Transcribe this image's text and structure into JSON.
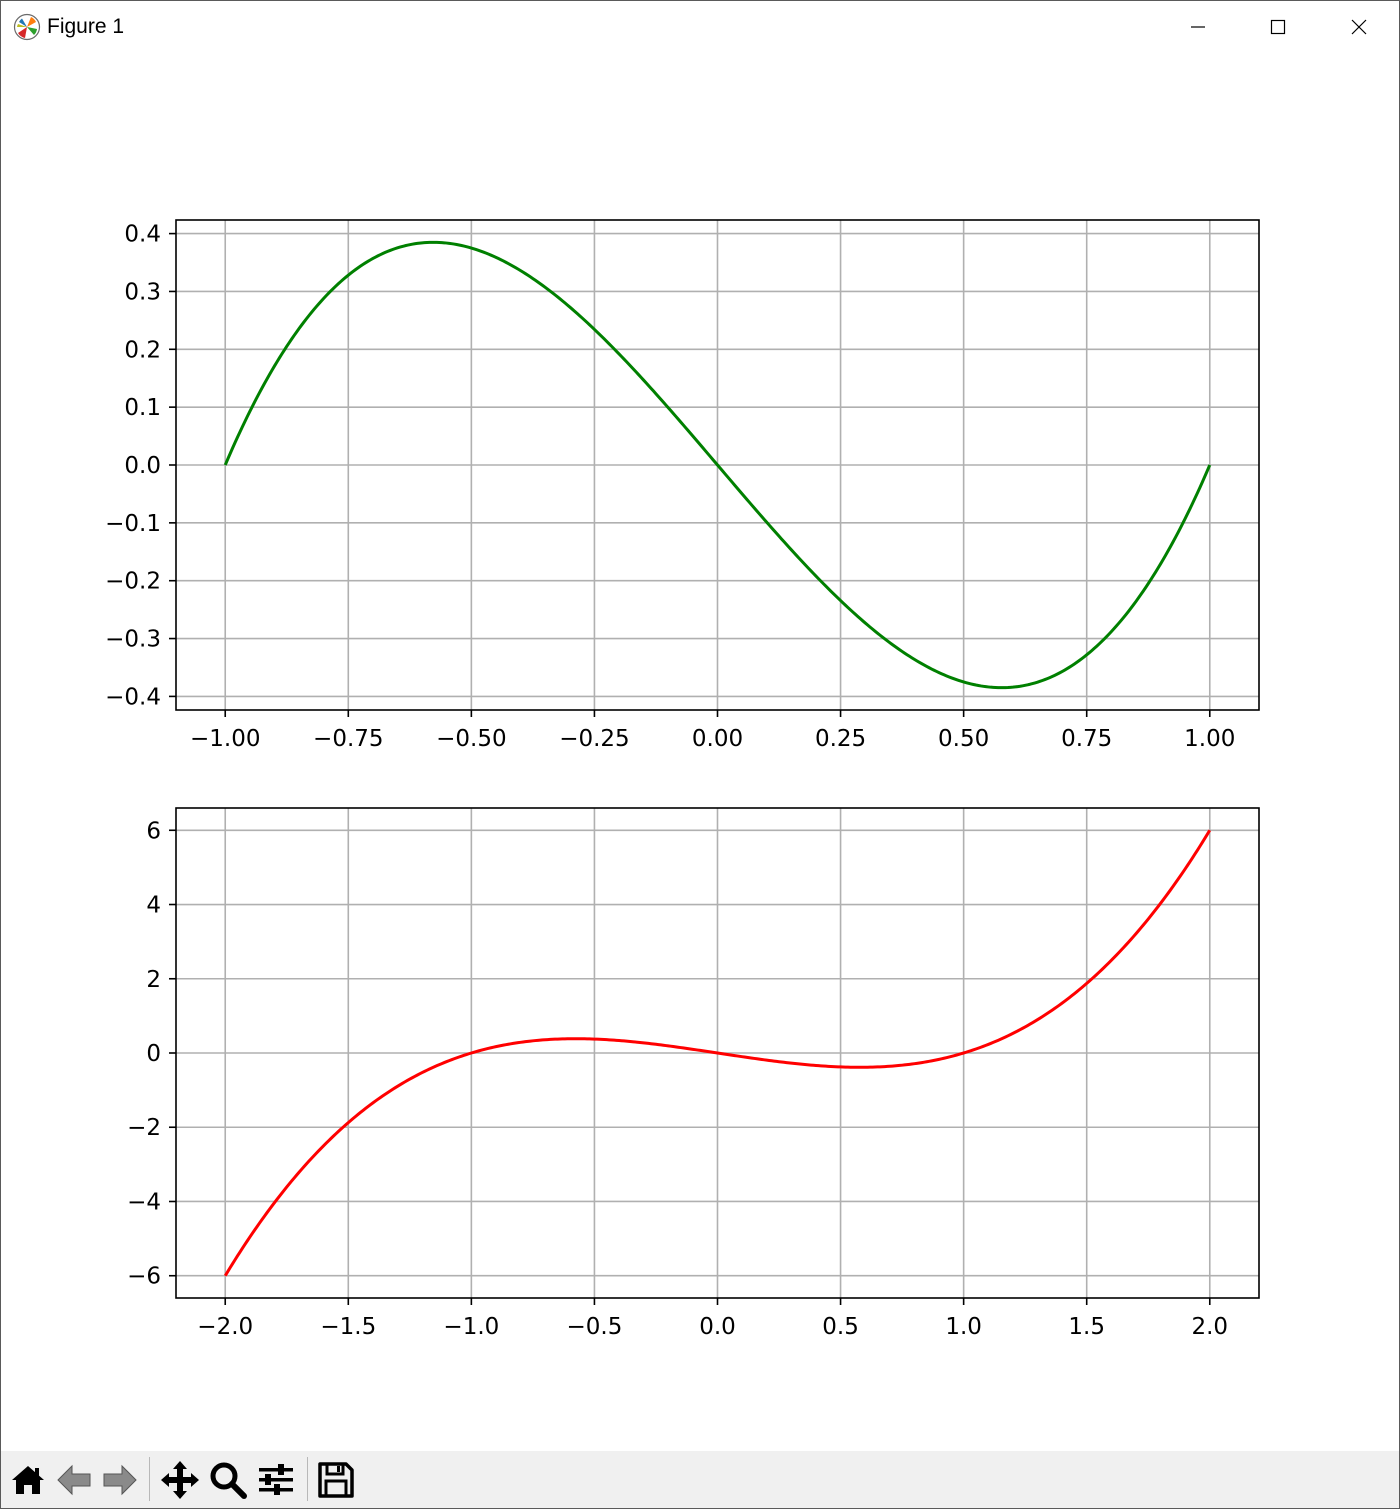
{
  "window": {
    "title": "Figure 1",
    "controls": [
      "minimize",
      "maximize",
      "close"
    ]
  },
  "toolbar": {
    "buttons": [
      {
        "name": "home-icon",
        "label": "Home"
      },
      {
        "name": "back-icon",
        "label": "Back"
      },
      {
        "name": "forward-icon",
        "label": "Forward"
      },
      {
        "name": "pan-icon",
        "label": "Pan"
      },
      {
        "name": "zoom-icon",
        "label": "Zoom"
      },
      {
        "name": "configure-subplots-icon",
        "label": "Configure subplots"
      },
      {
        "name": "save-icon",
        "label": "Save"
      }
    ]
  },
  "chart_data": [
    {
      "type": "line",
      "title": "",
      "xlabel": "",
      "ylabel": "",
      "xlim": [
        -1.1,
        1.1
      ],
      "ylim": [
        -0.4235,
        0.4235
      ],
      "grid": true,
      "xticks": [
        -1.0,
        -0.75,
        -0.5,
        -0.25,
        0.0,
        0.25,
        0.5,
        0.75,
        1.0
      ],
      "xtick_labels": [
        "−1.00",
        "−0.75",
        "−0.50",
        "−0.25",
        "0.00",
        "0.25",
        "0.50",
        "0.75",
        "1.00"
      ],
      "yticks": [
        0.4,
        0.3,
        0.2,
        0.1,
        0.0,
        -0.1,
        -0.2,
        -0.3,
        -0.4
      ],
      "ytick_labels": [
        "0.4",
        "0.3",
        "0.2",
        "0.1",
        "0.0",
        "−0.1",
        "−0.2",
        "−0.3",
        "−0.4"
      ],
      "series": [
        {
          "color": "#008000",
          "x": [
            -1.0,
            -0.9,
            -0.8,
            -0.7,
            -0.6,
            -0.577,
            -0.5,
            -0.4,
            -0.3,
            -0.2,
            -0.1,
            0.0,
            0.1,
            0.2,
            0.3,
            0.4,
            0.5,
            0.577,
            0.6,
            0.7,
            0.8,
            0.9,
            1.0
          ],
          "y": [
            0.0,
            0.171,
            0.288,
            0.357,
            0.384,
            0.385,
            0.375,
            0.336,
            0.273,
            0.192,
            0.099,
            0.0,
            -0.099,
            -0.192,
            -0.273,
            -0.336,
            -0.375,
            -0.385,
            -0.384,
            -0.357,
            -0.288,
            -0.171,
            0.0
          ]
        }
      ]
    },
    {
      "type": "line",
      "title": "",
      "xlabel": "",
      "ylabel": "",
      "xlim": [
        -2.2,
        2.2
      ],
      "ylim": [
        -6.6,
        6.6
      ],
      "grid": true,
      "xticks": [
        -2.0,
        -1.5,
        -1.0,
        -0.5,
        0.0,
        0.5,
        1.0,
        1.5,
        2.0
      ],
      "xtick_labels": [
        "−2.0",
        "−1.5",
        "−1.0",
        "−0.5",
        "0.0",
        "0.5",
        "1.0",
        "1.5",
        "2.0"
      ],
      "yticks": [
        6,
        4,
        2,
        0,
        -2,
        -4,
        -6
      ],
      "ytick_labels": [
        "6",
        "4",
        "2",
        "0",
        "−2",
        "−4",
        "−6"
      ],
      "series": [
        {
          "color": "#ff0000",
          "x": [
            -2.0,
            -1.75,
            -1.5,
            -1.25,
            -1.0,
            -0.75,
            -0.577,
            -0.5,
            -0.25,
            0.0,
            0.25,
            0.5,
            0.577,
            0.75,
            1.0,
            1.25,
            1.5,
            1.75,
            2.0
          ],
          "y": [
            -6.0,
            -3.609,
            -1.875,
            -0.703,
            0.0,
            0.328,
            0.385,
            0.375,
            0.234,
            0.0,
            -0.234,
            -0.375,
            -0.385,
            -0.328,
            0.0,
            0.703,
            1.875,
            3.609,
            6.0
          ]
        }
      ]
    }
  ]
}
